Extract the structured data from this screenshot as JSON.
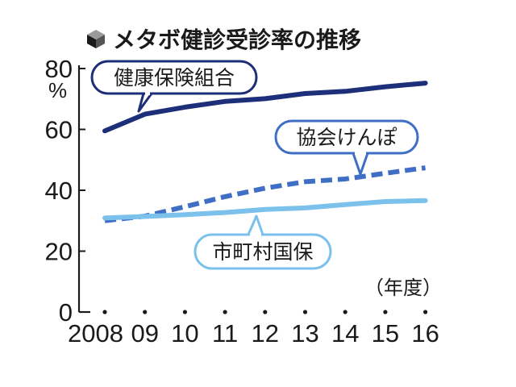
{
  "chart_data": {
    "type": "line",
    "title": "メタボ健診受診率の推移",
    "ylabel_unit": "%",
    "xlabel_unit": "（年度）",
    "x": [
      "2008",
      "09",
      "10",
      "11",
      "12",
      "13",
      "14",
      "15",
      "16"
    ],
    "ylim": [
      0,
      80
    ],
    "yticks": [
      0,
      20,
      40,
      60,
      80
    ],
    "grid": false,
    "legend": "inline labels with callouts",
    "series": [
      {
        "name": "健康保険組合",
        "values": [
          59.5,
          65.0,
          67.3,
          69.2,
          70.1,
          71.8,
          72.5,
          74.0,
          75.2
        ],
        "color": "#1c2f78",
        "style": "solid"
      },
      {
        "name": "協会けんぽ",
        "values": [
          30.0,
          31.5,
          34.6,
          37.9,
          40.7,
          42.8,
          43.7,
          45.6,
          47.4
        ],
        "color": "#3f6fc5",
        "style": "dashed"
      },
      {
        "name": "市町村国保",
        "values": [
          30.9,
          31.4,
          32.0,
          32.7,
          33.7,
          34.2,
          35.3,
          36.3,
          36.6
        ],
        "color": "#7cc1ec",
        "style": "solid"
      }
    ]
  },
  "colors": {
    "axis": "#1a1a1a",
    "text": "#1a1a1a"
  }
}
